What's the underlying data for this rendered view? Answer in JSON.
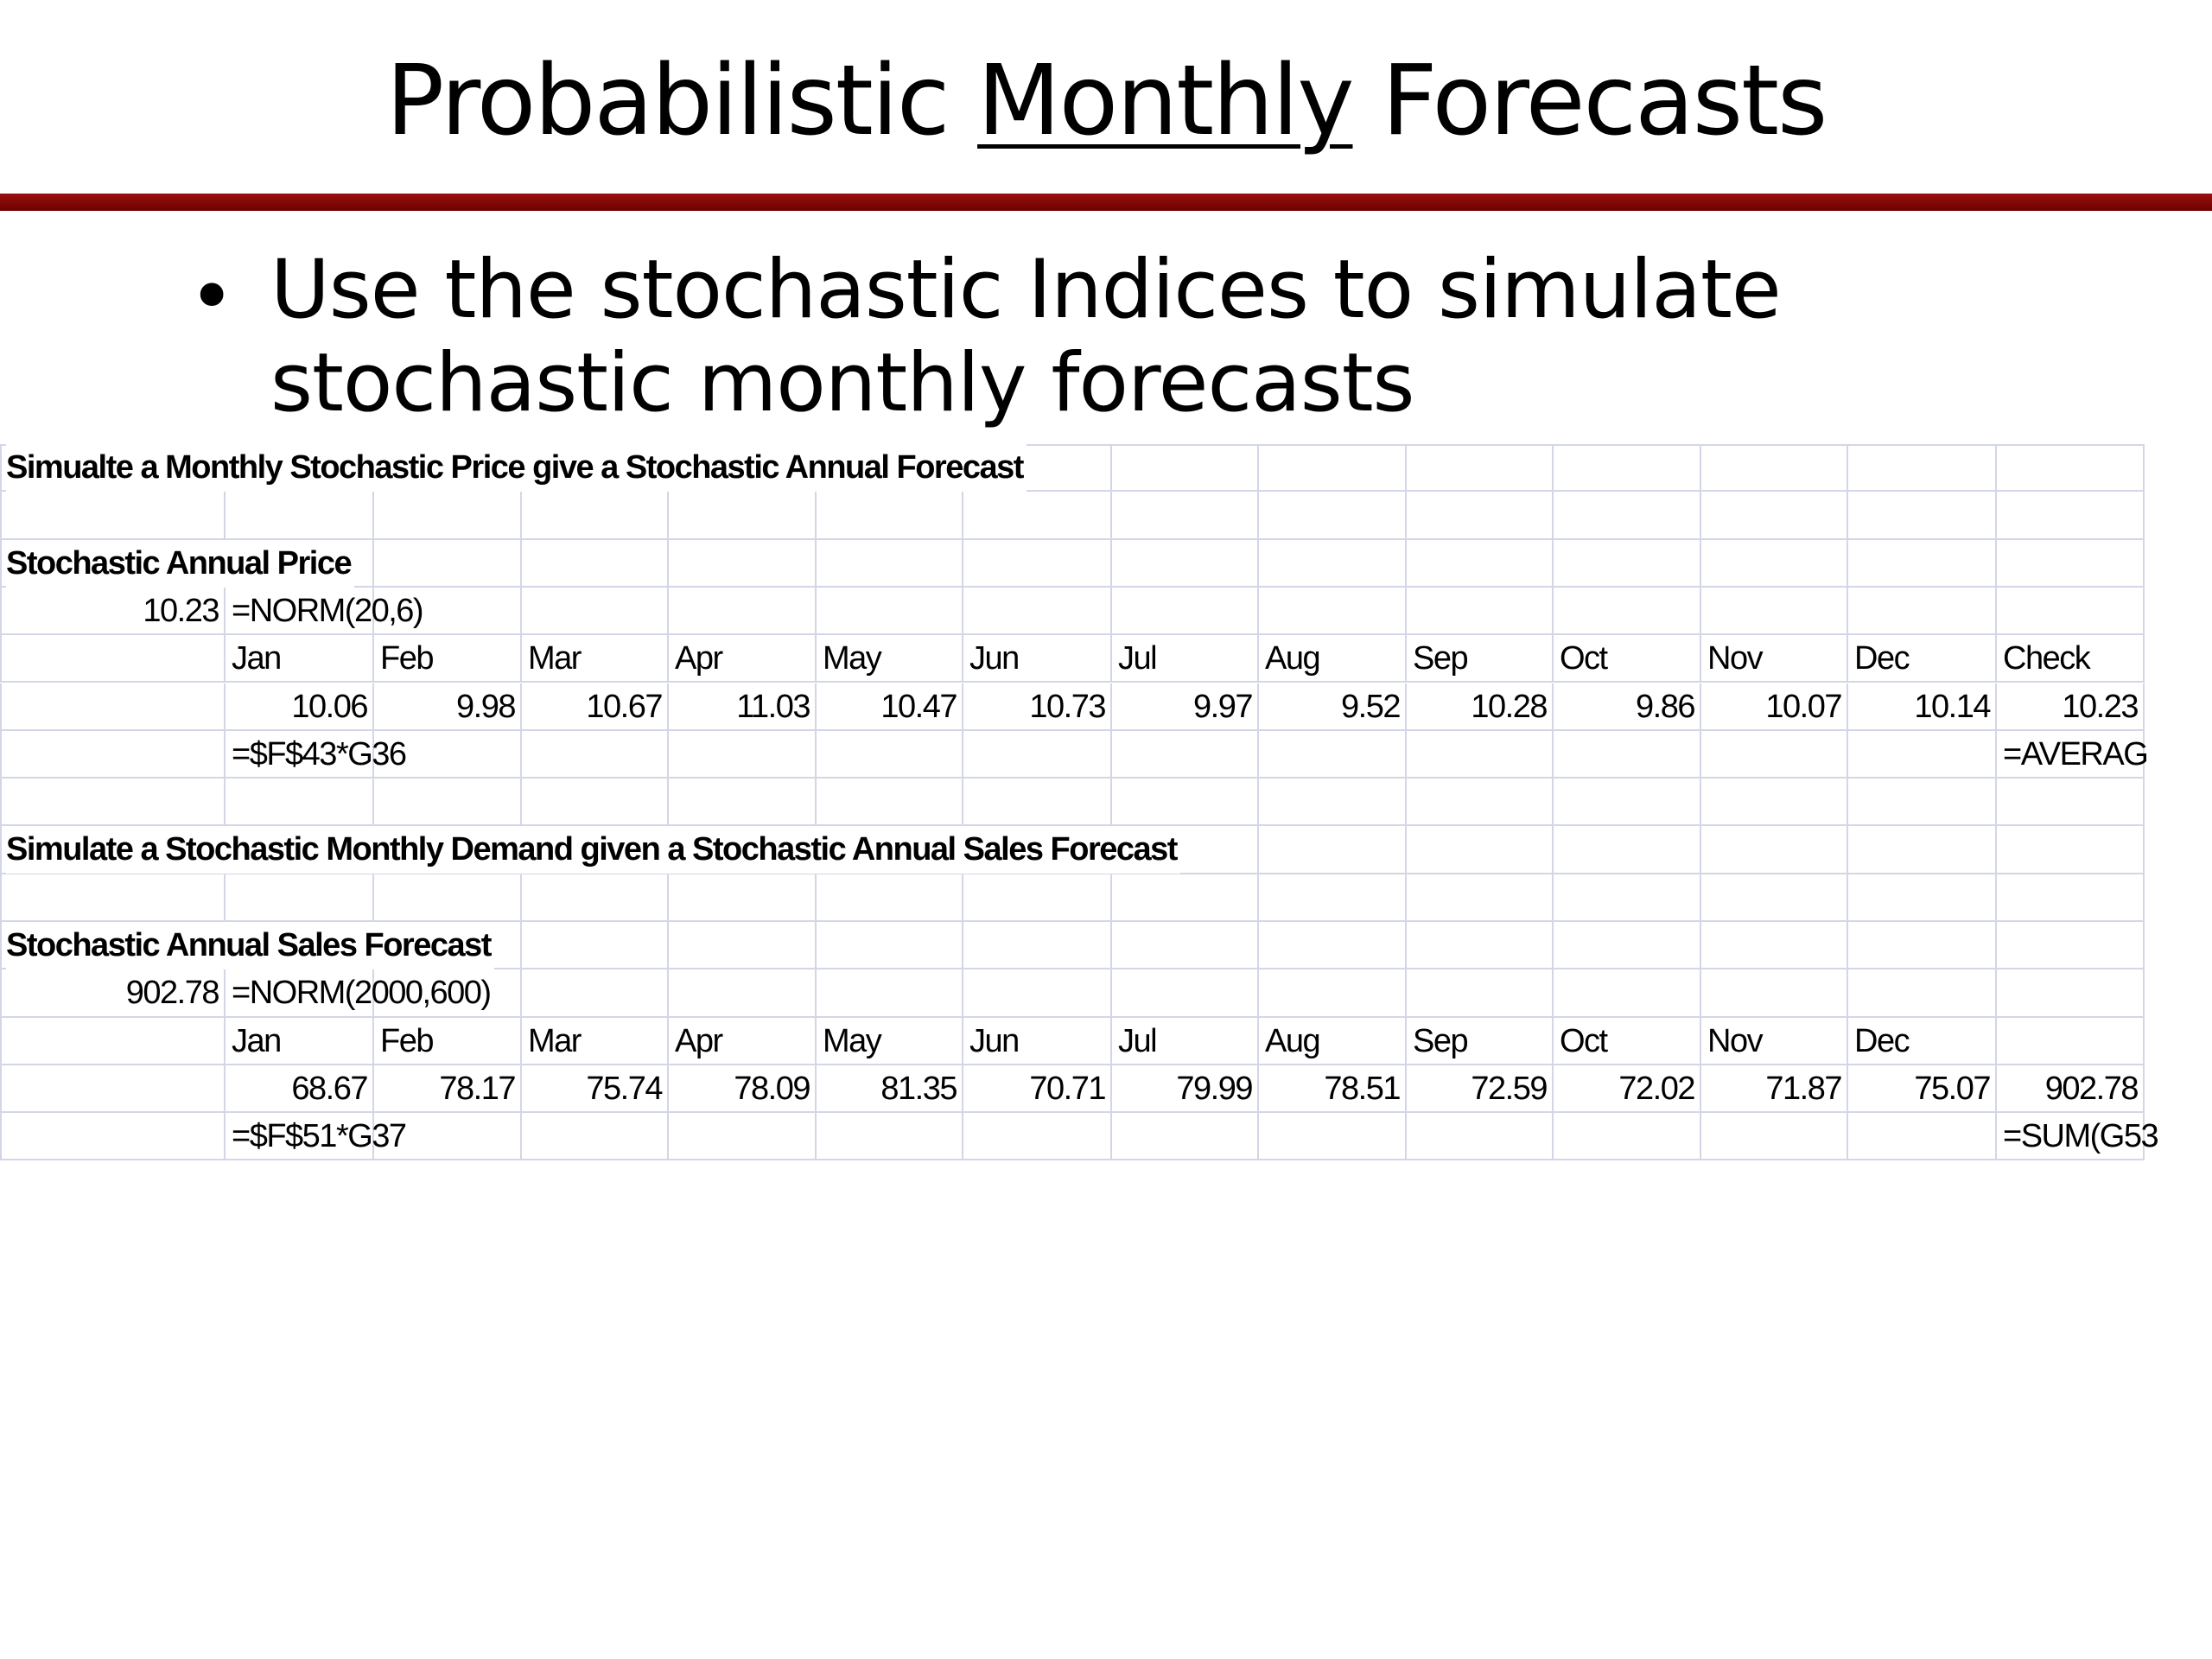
{
  "title": {
    "before": "Probabilistic",
    "underlined": "Monthly",
    "after": "Forecasts"
  },
  "bullet": "Use the stochastic Indices to simulate stochastic monthly forecasts",
  "sheet": {
    "sections": [
      {
        "heading": "Simualte a Monthly Stochastic Price give a Stochastic Annual Forecast",
        "label": "Stochastic Annual Price",
        "value": 10.23,
        "formula": "=NORM(20,6)",
        "months": [
          "Jan",
          "Feb",
          "Mar",
          "Apr",
          "May",
          "Jun",
          "Jul",
          "Aug",
          "Sep",
          "Oct",
          "Nov",
          "Dec"
        ],
        "extra_header": "Check",
        "monthly": [
          10.06,
          9.98,
          10.67,
          11.03,
          10.47,
          10.73,
          9.97,
          9.52,
          10.28,
          9.86,
          10.07,
          10.14
        ],
        "total": 10.23,
        "row_formula": "=$F$43*G36",
        "total_formula": "=AVERAG"
      },
      {
        "heading": "Simulate a Stochastic Monthly Demand given a Stochastic Annual Sales Forecast",
        "label": "Stochastic Annual Sales Forecast",
        "value": 902.78,
        "formula": "=NORM(2000,600)",
        "months": [
          "Jan",
          "Feb",
          "Mar",
          "Apr",
          "May",
          "Jun",
          "Jul",
          "Aug",
          "Sep",
          "Oct",
          "Nov",
          "Dec"
        ],
        "monthly": [
          68.67,
          78.17,
          75.74,
          78.09,
          81.35,
          70.71,
          79.99,
          78.51,
          72.59,
          72.02,
          71.87,
          75.07
        ],
        "total": 902.78,
        "row_formula": "=$F$51*G37",
        "total_formula": "=SUM(G53"
      }
    ]
  }
}
